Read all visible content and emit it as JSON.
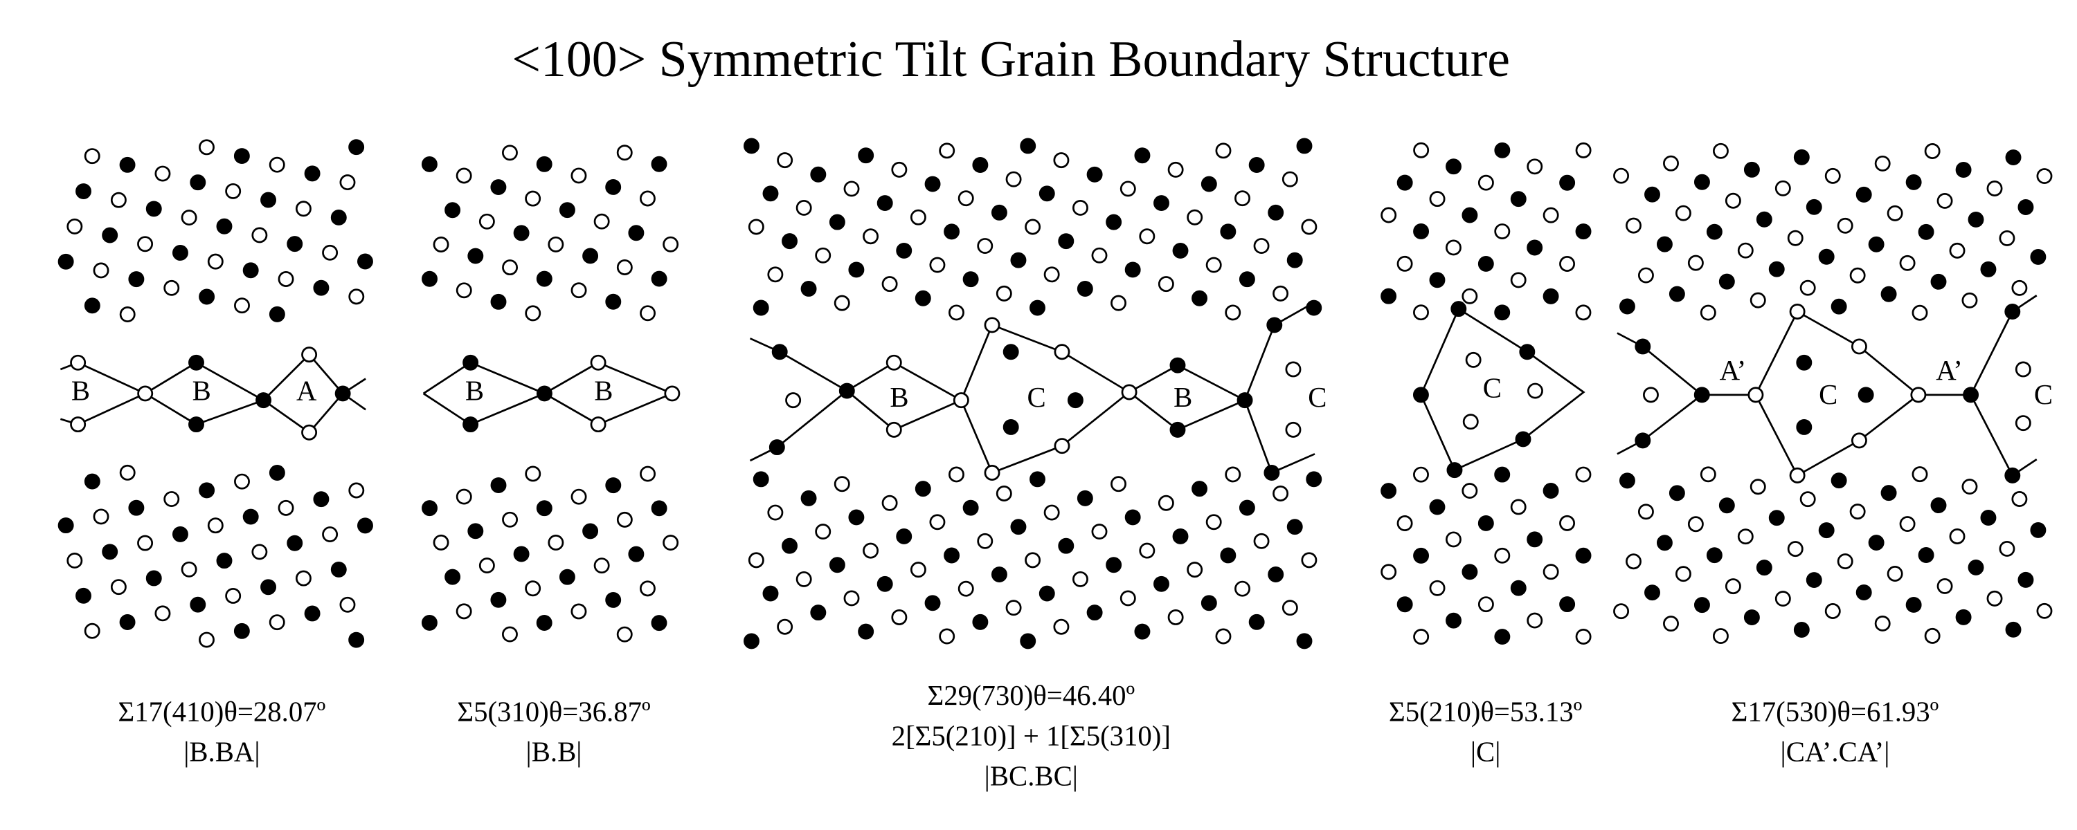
{
  "title": "<100> Symmetric Tilt Grain Boundary Structure",
  "panels": [
    {
      "units": [
        "B",
        "B",
        "A"
      ],
      "caption": [
        "Σ17(410)θ=28.07º",
        "|B.BA|"
      ]
    },
    {
      "units": [
        "B",
        "B"
      ],
      "caption": [
        "Σ5(310)θ=36.87º",
        "|B.B|"
      ]
    },
    {
      "units": [
        "B",
        "C",
        "B",
        "C"
      ],
      "caption": [
        "Σ29(730)θ=46.40º",
        "2[Σ5(210)] + 1[Σ5(310)]",
        "|BC.BC|"
      ]
    },
    {
      "units": [
        "C"
      ],
      "caption": [
        "Σ5(210)θ=53.13º",
        "|C|"
      ]
    },
    {
      "units": [
        "A’",
        "C",
        "A’",
        "C"
      ],
      "caption": [
        "Σ17(530)θ=61.93º",
        "|CA’.CA’|"
      ]
    }
  ]
}
